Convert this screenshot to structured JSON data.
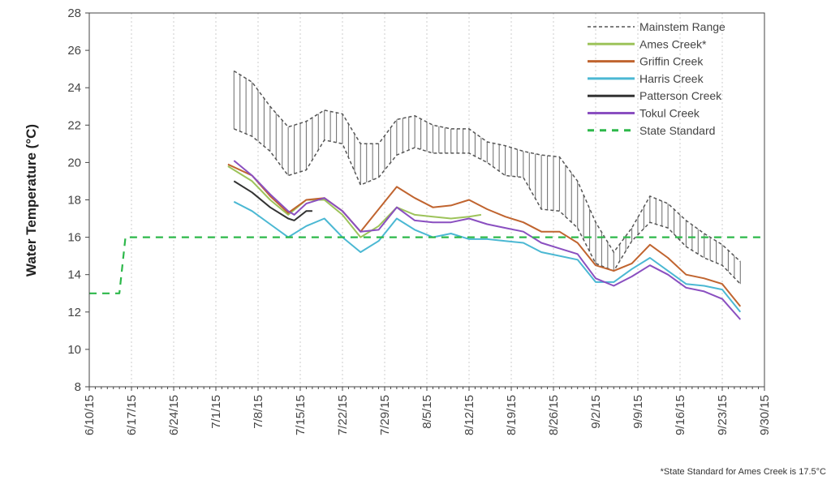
{
  "chart_data": {
    "type": "line",
    "title": "",
    "xlabel": "",
    "ylabel": "Water Temperature (°C)",
    "ylim": [
      8,
      28
    ],
    "yticks": [
      "8",
      "10",
      "12",
      "14",
      "16",
      "18",
      "20",
      "22",
      "24",
      "26",
      "28"
    ],
    "xlim": [
      "6/10/15",
      "9/30/15"
    ],
    "xticks": [
      "6/10/15",
      "6/17/15",
      "6/24/15",
      "7/1/15",
      "7/8/15",
      "7/15/15",
      "7/22/15",
      "7/29/15",
      "8/5/15",
      "8/12/15",
      "8/19/15",
      "8/26/15",
      "9/2/15",
      "9/9/15",
      "9/16/15",
      "9/23/15",
      "9/30/15"
    ],
    "grid": "vertical dotted at x ticks",
    "legend_position": "top-right",
    "footnote": "*State Standard for Ames Creek is 17.5°C",
    "range_band": {
      "name": "Mainstem Range",
      "color": "#555555",
      "style": "dashed bounds with vertical hatching",
      "dates": [
        "7/4/15",
        "7/7/15",
        "7/10/15",
        "7/13/15",
        "7/16/15",
        "7/19/15",
        "7/22/15",
        "7/25/15",
        "7/28/15",
        "7/31/15",
        "8/3/15",
        "8/6/15",
        "8/9/15",
        "8/12/15",
        "8/15/15",
        "8/18/15",
        "8/21/15",
        "8/24/15",
        "8/27/15",
        "8/30/15",
        "9/2/15",
        "9/5/15",
        "9/8/15",
        "9/11/15",
        "9/14/15",
        "9/17/15",
        "9/20/15",
        "9/23/15",
        "9/26/15"
      ],
      "upper": [
        24.9,
        24.3,
        23.0,
        21.9,
        22.2,
        22.8,
        22.6,
        21.0,
        21.0,
        22.3,
        22.5,
        22.0,
        21.8,
        21.8,
        21.1,
        20.9,
        20.6,
        20.4,
        20.3,
        19.0,
        16.8,
        15.2,
        16.5,
        18.2,
        17.8,
        16.9,
        16.2,
        15.6,
        14.7
      ],
      "lower": [
        21.8,
        21.4,
        20.6,
        19.3,
        19.6,
        21.2,
        21.0,
        18.8,
        19.2,
        20.4,
        20.8,
        20.5,
        20.5,
        20.5,
        20.0,
        19.3,
        19.2,
        17.5,
        17.4,
        16.5,
        14.6,
        14.2,
        15.8,
        16.8,
        16.5,
        15.5,
        14.9,
        14.5,
        13.5
      ]
    },
    "series": [
      {
        "name": "Ames Creek*",
        "color": "#9dc35a",
        "dash": false,
        "dates": [
          "7/3/15",
          "7/7/15",
          "7/10/15",
          "7/13/15",
          "7/16/15",
          "7/19/15",
          "7/22/15",
          "7/25/15",
          "7/28/15",
          "7/31/15",
          "8/3/15",
          "8/6/15",
          "8/9/15",
          "8/12/15",
          "8/14/15"
        ],
        "values": [
          19.8,
          19.0,
          18.0,
          17.2,
          18.0,
          18.0,
          17.2,
          16.0,
          16.6,
          17.6,
          17.2,
          17.1,
          17.0,
          17.1,
          17.2
        ]
      },
      {
        "name": "Griffin Creek",
        "color": "#c0642f",
        "dash": false,
        "dates": [
          "7/3/15",
          "7/7/15",
          "7/10/15",
          "7/13/15",
          "7/16/15",
          "7/19/15",
          "7/22/15",
          "7/25/15",
          "7/28/15",
          "7/31/15",
          "8/3/15",
          "8/6/15",
          "8/9/15",
          "8/12/15",
          "8/15/15",
          "8/18/15",
          "8/21/15",
          "8/24/15",
          "8/27/15",
          "8/30/15",
          "9/2/15",
          "9/5/15",
          "9/8/15",
          "9/11/15",
          "9/14/15",
          "9/17/15",
          "9/20/15",
          "9/23/15",
          "9/26/15"
        ],
        "values": [
          19.9,
          19.3,
          18.2,
          17.3,
          18.0,
          18.1,
          17.4,
          16.3,
          17.5,
          18.7,
          18.1,
          17.6,
          17.7,
          18.0,
          17.5,
          17.1,
          16.8,
          16.3,
          16.3,
          15.7,
          14.5,
          14.2,
          14.6,
          15.6,
          14.9,
          14.0,
          13.8,
          13.5,
          12.3
        ]
      },
      {
        "name": "Harris Creek",
        "color": "#4bb8d3",
        "dash": false,
        "dates": [
          "7/4/15",
          "7/7/15",
          "7/10/15",
          "7/13/15",
          "7/16/15",
          "7/19/15",
          "7/22/15",
          "7/25/15",
          "7/28/15",
          "7/31/15",
          "8/3/15",
          "8/6/15",
          "8/9/15",
          "8/12/15",
          "8/15/15",
          "8/18/15",
          "8/21/15",
          "8/24/15",
          "8/27/15",
          "8/30/15",
          "9/2/15",
          "9/5/15",
          "9/8/15",
          "9/11/15",
          "9/14/15",
          "9/17/15",
          "9/20/15",
          "9/23/15",
          "9/26/15"
        ],
        "values": [
          17.9,
          17.4,
          16.7,
          16.0,
          16.6,
          17.0,
          16.0,
          15.2,
          15.8,
          17.0,
          16.4,
          16.0,
          16.2,
          15.9,
          15.9,
          15.8,
          15.7,
          15.2,
          15.0,
          14.8,
          13.6,
          13.6,
          14.3,
          14.9,
          14.2,
          13.5,
          13.4,
          13.2,
          12.0
        ]
      },
      {
        "name": "Patterson Creek",
        "color": "#333333",
        "dash": false,
        "dates": [
          "7/4/15",
          "7/7/15",
          "7/10/15",
          "7/13/15",
          "7/14/15",
          "7/16/15",
          "7/17/15"
        ],
        "values": [
          19.0,
          18.4,
          17.6,
          17.0,
          16.9,
          17.4,
          17.4
        ]
      },
      {
        "name": "Tokul Creek",
        "color": "#8a4fc0",
        "dash": false,
        "dates": [
          "7/4/15",
          "7/7/15",
          "7/10/15",
          "7/13/15",
          "7/14/15",
          "7/16/15",
          "7/19/15",
          "7/22/15",
          "7/25/15",
          "7/28/15",
          "7/31/15",
          "8/3/15",
          "8/6/15",
          "8/9/15",
          "8/12/15",
          "8/15/15",
          "8/18/15",
          "8/21/15",
          "8/24/15",
          "8/27/15",
          "8/30/15",
          "9/2/15",
          "9/5/15",
          "9/8/15",
          "9/11/15",
          "9/14/15",
          "9/17/15",
          "9/20/15",
          "9/23/15",
          "9/26/15"
        ],
        "values": [
          20.1,
          19.3,
          18.3,
          17.4,
          17.2,
          17.8,
          18.1,
          17.4,
          16.3,
          16.4,
          17.6,
          16.9,
          16.8,
          16.8,
          17.0,
          16.7,
          16.5,
          16.3,
          15.7,
          15.4,
          15.1,
          13.8,
          13.4,
          13.9,
          14.5,
          14.0,
          13.3,
          13.1,
          12.7,
          11.6
        ]
      },
      {
        "name": "State Standard",
        "color": "#2db84a",
        "dash": true,
        "dates": [
          "6/10/15",
          "6/15/15",
          "6/16/15",
          "9/30/15"
        ],
        "values": [
          13,
          13,
          16,
          16
        ]
      }
    ]
  }
}
